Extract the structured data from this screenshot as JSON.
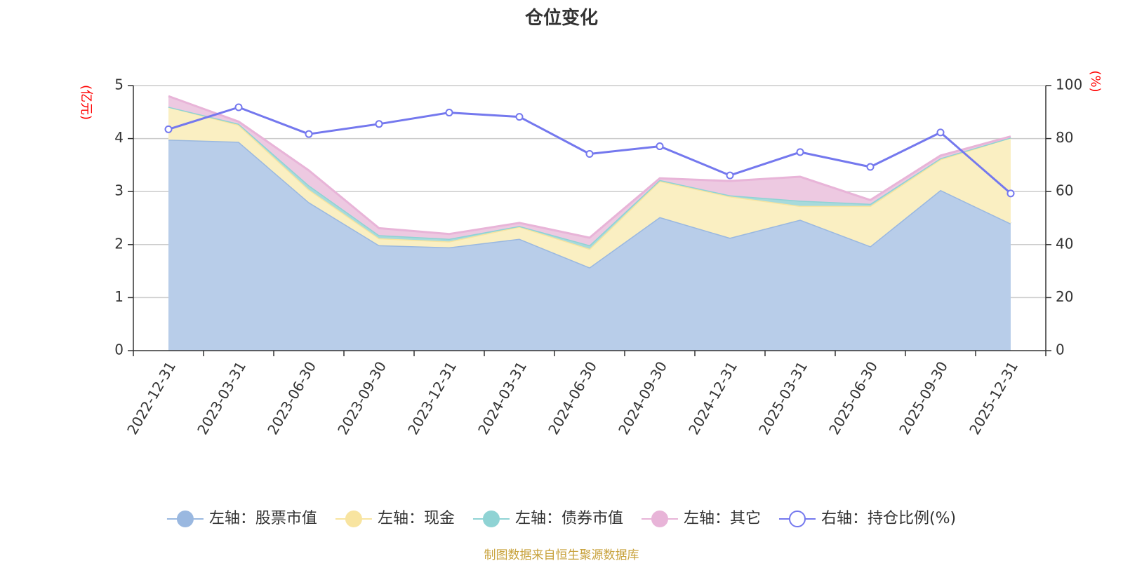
{
  "chart_data": {
    "type": "area",
    "title": "仓位变化",
    "categories": [
      "2022-12-31",
      "2023-03-31",
      "2023-06-30",
      "2023-09-30",
      "2023-12-31",
      "2024-03-31",
      "2024-06-30",
      "2024-09-30",
      "2024-12-31",
      "2025-03-31",
      "2025-06-30",
      "2025-09-30",
      "2025-12-31"
    ],
    "left_axis": {
      "unit": "(亿元)",
      "ylim": [
        0,
        5
      ],
      "ticks": [
        "0",
        "1",
        "2",
        "3",
        "4",
        "5"
      ]
    },
    "right_axis": {
      "unit": "(%)",
      "ylim": [
        0,
        100
      ],
      "ticks": [
        "0",
        "20",
        "40",
        "60",
        "80",
        "100"
      ]
    },
    "stacked_series": [
      {
        "name": "左轴：股票市值",
        "color": "#9ab8e0",
        "fill": "#b8cde9",
        "values": [
          3.98,
          3.94,
          2.8,
          1.99,
          1.95,
          2.11,
          1.57,
          2.52,
          2.13,
          2.47,
          1.97,
          3.03,
          2.4
        ]
      },
      {
        "name": "左轴：现金",
        "color": "#f8e4a0",
        "fill": "#faefc2",
        "values": [
          0.62,
          0.32,
          0.24,
          0.13,
          0.11,
          0.23,
          0.35,
          0.68,
          0.78,
          0.26,
          0.76,
          0.58,
          1.62
        ]
      },
      {
        "name": "左轴：债券市值",
        "color": "#8fd3d4",
        "fill": "#a7dadb",
        "values": [
          0.0,
          0.02,
          0.08,
          0.06,
          0.05,
          0.01,
          0.07,
          0.02,
          0.02,
          0.1,
          0.04,
          0.02,
          0.0
        ]
      },
      {
        "name": "左轴：其它",
        "color": "#e8b4d8",
        "fill": "#edc9e1",
        "values": [
          0.2,
          0.04,
          0.28,
          0.13,
          0.09,
          0.06,
          0.14,
          0.03,
          0.27,
          0.45,
          0.07,
          0.05,
          0.02
        ]
      }
    ],
    "line_series": {
      "name": "右轴：持仓比例(%)",
      "color": "#7478ee",
      "values": [
        83.5,
        91.8,
        81.7,
        85.5,
        89.8,
        88.2,
        74.2,
        77.1,
        66.1,
        74.9,
        69.3,
        82.3,
        59.3
      ]
    },
    "legend_position": "bottom",
    "grid": true
  },
  "footer": {
    "source": "制图数据来自恒生聚源数据库"
  }
}
